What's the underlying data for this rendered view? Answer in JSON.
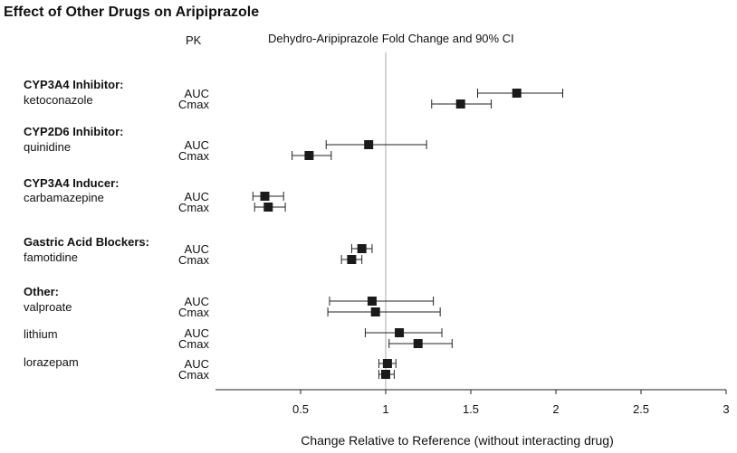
{
  "chart_data": {
    "type": "forest",
    "title": "Effect of Other Drugs on Aripiprazole",
    "pk_header": "PK",
    "subtitle": "Dehydro-Aripiprazole Fold Change and 90% CI",
    "xlabel": "Change Relative to Reference (without interacting drug)",
    "xlim": [
      0,
      3
    ],
    "xticks": [
      0.5,
      1,
      1.5,
      2,
      2.5,
      3
    ],
    "xtick_labels": [
      "0.5",
      "1",
      "1.5",
      "2",
      "2.5",
      "3"
    ],
    "reference_line": 1,
    "groups": [
      "CYP3A4 Inhibitor:",
      "CYP2D6 Inhibitor:",
      "CYP3A4 Inducer:",
      "Gastric Acid Blockers:",
      "Other:"
    ],
    "drugs": [
      "ketoconazole",
      "quinidine",
      "carbamazepine",
      "famotidine",
      "valproate",
      "lithium",
      "lorazepam"
    ],
    "pk_labels": [
      "AUC",
      "Cmax"
    ],
    "rows": [
      {
        "drug": "ketoconazole",
        "pk": "AUC",
        "estimate": 1.77,
        "lower": 1.54,
        "upper": 2.04
      },
      {
        "drug": "ketoconazole",
        "pk": "Cmax",
        "estimate": 1.44,
        "lower": 1.27,
        "upper": 1.62
      },
      {
        "drug": "quinidine",
        "pk": "AUC",
        "estimate": 0.9,
        "lower": 0.65,
        "upper": 1.24
      },
      {
        "drug": "quinidine",
        "pk": "Cmax",
        "estimate": 0.55,
        "lower": 0.45,
        "upper": 0.68
      },
      {
        "drug": "carbamazepine",
        "pk": "AUC",
        "estimate": 0.29,
        "lower": 0.22,
        "upper": 0.4
      },
      {
        "drug": "carbamazepine",
        "pk": "Cmax",
        "estimate": 0.31,
        "lower": 0.23,
        "upper": 0.41
      },
      {
        "drug": "famotidine",
        "pk": "AUC",
        "estimate": 0.86,
        "lower": 0.8,
        "upper": 0.92
      },
      {
        "drug": "famotidine",
        "pk": "Cmax",
        "estimate": 0.8,
        "lower": 0.74,
        "upper": 0.86
      },
      {
        "drug": "valproate",
        "pk": "AUC",
        "estimate": 0.92,
        "lower": 0.67,
        "upper": 1.28
      },
      {
        "drug": "valproate",
        "pk": "Cmax",
        "estimate": 0.94,
        "lower": 0.66,
        "upper": 1.32
      },
      {
        "drug": "lithium",
        "pk": "AUC",
        "estimate": 1.08,
        "lower": 0.88,
        "upper": 1.33
      },
      {
        "drug": "lithium",
        "pk": "Cmax",
        "estimate": 1.19,
        "lower": 1.02,
        "upper": 1.39
      },
      {
        "drug": "lorazepam",
        "pk": "AUC",
        "estimate": 1.01,
        "lower": 0.96,
        "upper": 1.06
      },
      {
        "drug": "lorazepam",
        "pk": "Cmax",
        "estimate": 1.0,
        "lower": 0.96,
        "upper": 1.05
      }
    ]
  }
}
